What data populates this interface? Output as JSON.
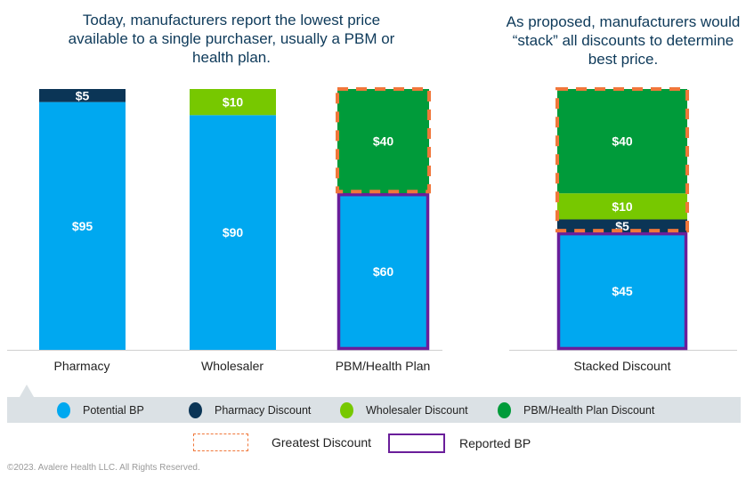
{
  "titles": {
    "left": "Today, manufacturers report the lowest price available to a single purchaser, usually a PBM or health plan.",
    "right": "As proposed, manufacturers would “stack” all discounts to determine best price."
  },
  "chart_data": {
    "type": "bar",
    "stacked": true,
    "categories": [
      "Pharmacy",
      "Wholesaler",
      "PBM/Health Plan",
      "Stacked Discount"
    ],
    "series": [
      {
        "name": "Potential BP",
        "color": "#00a8f0",
        "values": [
          95,
          90,
          60,
          45
        ]
      },
      {
        "name": "Pharmacy Discount",
        "color": "#0b3556",
        "values": [
          5,
          0,
          0,
          5
        ]
      },
      {
        "name": "Wholesaler Discount",
        "color": "#77c800",
        "values": [
          0,
          10,
          0,
          10
        ]
      },
      {
        "name": "PBM/Health Plan Discount",
        "color": "#009b3a",
        "values": [
          0,
          0,
          40,
          40
        ]
      }
    ],
    "data_labels": [
      [
        "$95",
        "$5",
        "",
        ""
      ],
      [
        "$90",
        "",
        "$10",
        ""
      ],
      [
        "$60",
        "",
        "",
        "$40"
      ],
      [
        "$45",
        "$5",
        "$10",
        "$40"
      ]
    ],
    "ylim": [
      0,
      100
    ],
    "grid": false,
    "highlights": {
      "greatest_discount": {
        "color": "#f0773a",
        "style": "dashed",
        "categories": [
          "PBM/Health Plan",
          "Stacked Discount"
        ]
      },
      "reported_bp": {
        "color": "#6a1e9a",
        "style": "solid",
        "categories": [
          "PBM/Health Plan",
          "Stacked Discount"
        ]
      }
    }
  },
  "legend": {
    "items": [
      {
        "label": "Potential BP",
        "color": "#00a8f0"
      },
      {
        "label": "Pharmacy Discount",
        "color": "#0b3556"
      },
      {
        "label": "Wholesaler Discount",
        "color": "#77c800"
      },
      {
        "label": "PBM/Health Plan Discount",
        "color": "#009b3a"
      }
    ],
    "greatest_discount": "Greatest Discount",
    "reported_bp": "Reported BP"
  },
  "footer": {
    "copyright": "©2023. Avalere Health LLC.  All Rights Reserved."
  }
}
